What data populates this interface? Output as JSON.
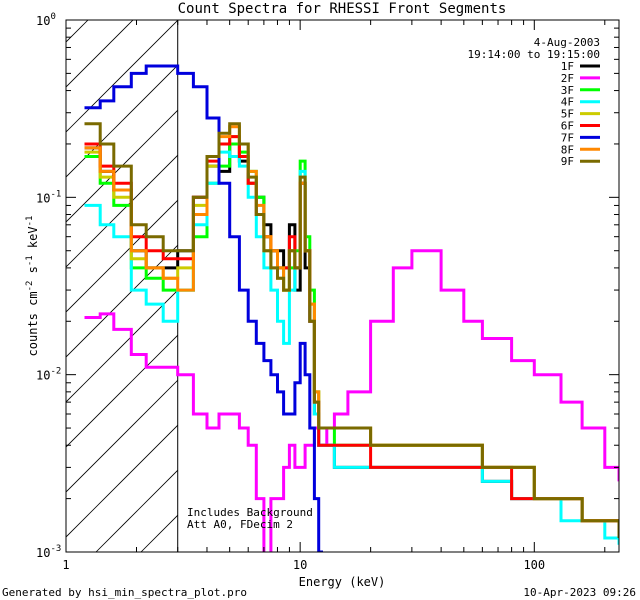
{
  "chart_data": {
    "type": "line",
    "title": "Count Spectra for RHESSI Front Segments",
    "xlabel": "Energy (keV)",
    "ylabel_parts": [
      "counts cm",
      "-2",
      " s",
      "-1",
      " keV",
      "-1"
    ],
    "x_scale": "log",
    "y_scale": "log",
    "xlim": [
      1,
      230
    ],
    "ylim": [
      0.001,
      1
    ],
    "x_ticks": [
      {
        "value": 1,
        "label": "1"
      },
      {
        "value": 10,
        "label": "10"
      },
      {
        "value": 100,
        "label": "100"
      }
    ],
    "y_ticks": [
      {
        "value": 1,
        "mant": "10",
        "exp": "0"
      },
      {
        "value": 0.1,
        "mant": "10",
        "exp": "-1"
      },
      {
        "value": 0.01,
        "mant": "10",
        "exp": "-2"
      },
      {
        "value": 0.001,
        "mant": "10",
        "exp": "-3"
      }
    ],
    "hatched_region": {
      "x0": 1,
      "x1": 3
    },
    "legend_placement": "top-right",
    "header_lines": [
      "4-Aug-2003",
      "19:14:00 to 19:15:00"
    ],
    "annotations": [
      "Includes Background",
      "Att A0, FDecim 2"
    ],
    "footer_left": "Generated by hsi_min_spectra_plot.pro",
    "footer_right": "10-Apr-2023 09:26",
    "series": [
      {
        "name": "1F",
        "color": "#000000",
        "x": [
          1.2,
          1.4,
          1.6,
          1.9,
          2.2,
          2.6,
          3.0,
          3.5,
          4.0,
          4.5,
          5.0,
          5.5,
          6.0,
          6.5,
          7.0,
          7.5,
          8.0,
          8.5,
          9.0,
          9.5,
          10.0,
          10.5,
          11.0,
          11.5,
          12.0,
          13.0,
          14.0,
          16.0,
          20.0,
          25.0,
          30.0,
          40.0,
          50.0,
          60.0,
          80.0,
          100.0,
          130.0,
          160.0,
          200.0,
          230.0
        ],
        "y": [
          0.19,
          0.14,
          0.11,
          0.05,
          0.04,
          0.04,
          0.05,
          0.1,
          0.15,
          0.14,
          0.2,
          0.16,
          0.12,
          0.1,
          0.07,
          0.05,
          0.05,
          0.04,
          0.07,
          0.03,
          0.12,
          0.04,
          0.02,
          0.006,
          0.004,
          0.004,
          0.003,
          0.003,
          0.003,
          0.003,
          0.003,
          0.003,
          0.003,
          0.0025,
          0.002,
          0.002,
          0.002,
          0.0015,
          0.0015,
          0.0012
        ]
      },
      {
        "name": "2F",
        "color": "#ff00ff",
        "x": [
          1.2,
          1.4,
          1.6,
          1.9,
          2.2,
          2.6,
          3.0,
          3.5,
          4.0,
          4.5,
          5.0,
          5.5,
          6.0,
          6.5,
          7.0,
          7.5,
          8.0,
          8.5,
          9.0,
          9.5,
          10.0,
          10.5,
          11.0,
          11.5,
          12.0,
          13.0,
          14.0,
          16.0,
          20.0,
          25.0,
          30.0,
          40.0,
          50.0,
          60.0,
          80.0,
          100.0,
          130.0,
          160.0,
          200.0,
          230.0
        ],
        "y": [
          0.021,
          0.022,
          0.018,
          0.013,
          0.011,
          0.011,
          0.01,
          0.006,
          0.005,
          0.006,
          0.006,
          0.005,
          0.004,
          0.002,
          0.0009,
          0.002,
          0.002,
          0.003,
          0.004,
          0.003,
          0.003,
          0.004,
          0.004,
          0.005,
          0.004,
          0.005,
          0.006,
          0.008,
          0.02,
          0.04,
          0.05,
          0.03,
          0.02,
          0.016,
          0.012,
          0.01,
          0.007,
          0.005,
          0.003,
          0.0025
        ]
      },
      {
        "name": "3F",
        "color": "#00ff00",
        "x": [
          1.2,
          1.4,
          1.6,
          1.9,
          2.2,
          2.6,
          3.0,
          3.5,
          4.0,
          4.5,
          5.0,
          5.5,
          6.0,
          6.5,
          7.0,
          7.5,
          8.0,
          8.5,
          9.0,
          9.5,
          10.0,
          10.5,
          11.0,
          11.5,
          12.0,
          13.0,
          14.0,
          16.0,
          20.0,
          25.0,
          30.0,
          40.0,
          50.0,
          60.0,
          80.0,
          100.0,
          130.0,
          160.0,
          200.0,
          230.0
        ],
        "y": [
          0.17,
          0.12,
          0.09,
          0.04,
          0.035,
          0.03,
          0.03,
          0.06,
          0.12,
          0.15,
          0.2,
          0.18,
          0.14,
          0.1,
          0.06,
          0.05,
          0.04,
          0.03,
          0.04,
          0.05,
          0.16,
          0.06,
          0.03,
          0.008,
          0.005,
          0.005,
          0.004,
          0.004,
          0.004,
          0.004,
          0.004,
          0.004,
          0.004,
          0.003,
          0.003,
          0.002,
          0.002,
          0.0015,
          0.0015,
          0.0012
        ]
      },
      {
        "name": "4F",
        "color": "#00ffff",
        "x": [
          1.2,
          1.4,
          1.6,
          1.9,
          2.2,
          2.6,
          3.0,
          3.5,
          4.0,
          4.5,
          5.0,
          5.5,
          6.0,
          6.5,
          7.0,
          7.5,
          8.0,
          8.5,
          9.0,
          9.5,
          10.0,
          10.5,
          11.0,
          11.5,
          12.0,
          13.0,
          14.0,
          16.0,
          20.0,
          25.0,
          30.0,
          40.0,
          50.0,
          60.0,
          80.0,
          100.0,
          130.0,
          160.0,
          200.0,
          230.0
        ],
        "y": [
          0.09,
          0.07,
          0.06,
          0.03,
          0.025,
          0.02,
          0.03,
          0.07,
          0.12,
          0.18,
          0.17,
          0.15,
          0.1,
          0.06,
          0.04,
          0.03,
          0.02,
          0.015,
          0.03,
          0.04,
          0.14,
          0.05,
          0.02,
          0.006,
          0.004,
          0.004,
          0.003,
          0.003,
          0.003,
          0.003,
          0.003,
          0.003,
          0.003,
          0.0025,
          0.002,
          0.002,
          0.0015,
          0.0015,
          0.0012,
          0.0011
        ]
      },
      {
        "name": "5F",
        "color": "#cccc00",
        "x": [
          1.2,
          1.4,
          1.6,
          1.9,
          2.2,
          2.6,
          3.0,
          3.5,
          4.0,
          4.5,
          5.0,
          5.5,
          6.0,
          6.5,
          7.0,
          7.5,
          8.0,
          8.5,
          9.0,
          9.5,
          10.0,
          10.5,
          11.0,
          11.5,
          12.0,
          13.0,
          14.0,
          16.0,
          20.0,
          25.0,
          30.0,
          40.0,
          50.0,
          60.0,
          80.0,
          100.0,
          130.0,
          160.0,
          200.0,
          230.0
        ],
        "y": [
          0.18,
          0.13,
          0.1,
          0.045,
          0.04,
          0.035,
          0.04,
          0.09,
          0.15,
          0.2,
          0.22,
          0.17,
          0.12,
          0.08,
          0.05,
          0.04,
          0.035,
          0.03,
          0.05,
          0.04,
          0.13,
          0.05,
          0.025,
          0.008,
          0.005,
          0.005,
          0.005,
          0.005,
          0.004,
          0.004,
          0.004,
          0.004,
          0.004,
          0.003,
          0.003,
          0.002,
          0.002,
          0.0015,
          0.0015,
          0.0012
        ]
      },
      {
        "name": "6F",
        "color": "#ff0000",
        "x": [
          1.2,
          1.4,
          1.6,
          1.9,
          2.2,
          2.6,
          3.0,
          3.5,
          4.0,
          4.5,
          5.0,
          5.5,
          6.0,
          6.5,
          7.0,
          7.5,
          8.0,
          8.5,
          9.0,
          9.5,
          10.0,
          10.5,
          11.0,
          11.5,
          12.0,
          13.0,
          14.0,
          16.0,
          20.0,
          25.0,
          30.0,
          40.0,
          50.0,
          60.0,
          80.0,
          100.0,
          130.0,
          160.0,
          200.0,
          230.0
        ],
        "y": [
          0.2,
          0.15,
          0.12,
          0.06,
          0.05,
          0.045,
          0.045,
          0.1,
          0.16,
          0.2,
          0.22,
          0.17,
          0.12,
          0.08,
          0.06,
          0.05,
          0.04,
          0.04,
          0.06,
          0.04,
          0.12,
          0.05,
          0.02,
          0.007,
          0.004,
          0.004,
          0.004,
          0.004,
          0.003,
          0.003,
          0.003,
          0.003,
          0.003,
          0.003,
          0.002,
          0.002,
          0.002,
          0.0015,
          0.0015,
          0.0012
        ]
      },
      {
        "name": "7F",
        "color": "#0000dd",
        "x": [
          1.2,
          1.4,
          1.6,
          1.9,
          2.2,
          2.6,
          3.0,
          3.5,
          4.0,
          4.5,
          5.0,
          5.5,
          6.0,
          6.5,
          7.0,
          7.5,
          8.0,
          8.5,
          9.0,
          9.5,
          10.0,
          10.5,
          11.0,
          11.5,
          12.0
        ],
        "y": [
          0.32,
          0.35,
          0.42,
          0.5,
          0.55,
          0.55,
          0.5,
          0.42,
          0.28,
          0.12,
          0.06,
          0.03,
          0.02,
          0.015,
          0.012,
          0.01,
          0.008,
          0.006,
          0.006,
          0.009,
          0.015,
          0.01,
          0.005,
          0.002,
          0.001
        ]
      },
      {
        "name": "8F",
        "color": "#ff8800",
        "x": [
          1.2,
          1.4,
          1.6,
          1.9,
          2.2,
          2.6,
          3.0,
          3.5,
          4.0,
          4.5,
          5.0,
          5.5,
          6.0,
          6.5,
          7.0,
          7.5,
          8.0,
          8.5,
          9.0,
          9.5,
          10.0,
          10.5,
          11.0,
          11.5,
          12.0,
          13.0,
          14.0,
          16.0,
          20.0,
          25.0,
          30.0,
          40.0,
          50.0,
          60.0,
          80.0,
          100.0,
          130.0,
          160.0,
          200.0,
          230.0
        ],
        "y": [
          0.19,
          0.14,
          0.11,
          0.05,
          0.04,
          0.035,
          0.03,
          0.08,
          0.17,
          0.22,
          0.25,
          0.2,
          0.14,
          0.09,
          0.06,
          0.05,
          0.04,
          0.03,
          0.05,
          0.04,
          0.12,
          0.05,
          0.025,
          0.008,
          0.005,
          0.005,
          0.005,
          0.005,
          0.004,
          0.004,
          0.004,
          0.004,
          0.004,
          0.003,
          0.003,
          0.002,
          0.002,
          0.0015,
          0.0015,
          0.0012
        ]
      },
      {
        "name": "9F",
        "color": "#7a6a00",
        "x": [
          1.2,
          1.4,
          1.6,
          1.9,
          2.2,
          2.6,
          3.0,
          3.5,
          4.0,
          4.5,
          5.0,
          5.5,
          6.0,
          6.5,
          7.0,
          7.5,
          8.0,
          8.5,
          9.0,
          9.5,
          10.0,
          10.5,
          11.0,
          11.5,
          12.0,
          13.0,
          14.0,
          16.0,
          20.0,
          25.0,
          30.0,
          40.0,
          50.0,
          60.0,
          80.0,
          100.0,
          130.0,
          160.0,
          200.0,
          230.0
        ],
        "y": [
          0.26,
          0.2,
          0.15,
          0.07,
          0.06,
          0.05,
          0.05,
          0.1,
          0.17,
          0.23,
          0.26,
          0.2,
          0.13,
          0.08,
          0.05,
          0.04,
          0.035,
          0.03,
          0.05,
          0.04,
          0.13,
          0.05,
          0.02,
          0.007,
          0.005,
          0.005,
          0.005,
          0.005,
          0.004,
          0.004,
          0.004,
          0.004,
          0.004,
          0.003,
          0.003,
          0.002,
          0.002,
          0.0015,
          0.0015,
          0.0012
        ]
      }
    ]
  }
}
